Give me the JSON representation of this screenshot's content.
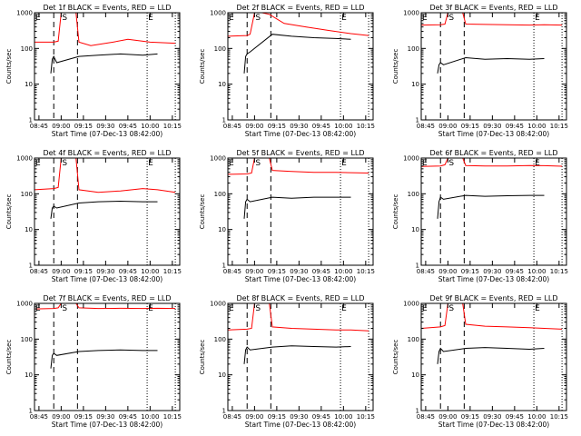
{
  "chart_data": [
    {
      "type": "line",
      "title": "Det 1f BLACK = Events, RED = LLD",
      "xlabel": "Start Time (07-Dec-13 08:42:00)",
      "ylabel": "Counts/sec",
      "y_scale": "log",
      "ylim": [
        1,
        1000
      ],
      "yticks": [
        "1",
        "10",
        "100",
        "1000"
      ],
      "xticks": [
        "08:45",
        "09:00",
        "09:15",
        "09:30",
        "09:45",
        "10:00",
        "10:15"
      ],
      "xlim": [
        "08:42",
        "10:20"
      ],
      "markers": [
        {
          "label": "E",
          "time": "08:42"
        },
        {
          "label": "S",
          "time": "09:00"
        },
        {
          "label": "E",
          "time": "09:58"
        }
      ],
      "dashed_lines": [
        "08:55",
        "09:11"
      ],
      "dotted_lines": [
        "09:58",
        "10:17"
      ],
      "series": [
        {
          "color": "#ff0000",
          "x": [
            "08:42",
            "08:55",
            "08:58",
            "09:00",
            "09:10",
            "09:12",
            "09:20",
            "09:35",
            "09:45",
            "10:00",
            "10:17"
          ],
          "y": [
            150,
            150,
            160,
            1000,
            1000,
            150,
            120,
            150,
            180,
            150,
            140
          ]
        },
        {
          "color": "#000000",
          "x": [
            "08:53",
            "08:54",
            "08:55",
            "08:57",
            "09:12",
            "09:25",
            "09:40",
            "09:55",
            "10:05"
          ],
          "y": [
            20,
            50,
            60,
            40,
            60,
            65,
            70,
            65,
            70
          ]
        }
      ]
    },
    {
      "type": "line",
      "title": "Det 2f BLACK = Events, RED = LLD",
      "xlabel": "Start Time (07-Dec-13 08:42:00)",
      "ylabel": "Counts/sec",
      "y_scale": "log",
      "ylim": [
        1,
        1000
      ],
      "yticks": [
        "1",
        "10",
        "100",
        "1000"
      ],
      "xticks": [
        "08:45",
        "09:00",
        "09:15",
        "09:30",
        "09:45",
        "10:00",
        "10:15"
      ],
      "xlim": [
        "08:42",
        "10:20"
      ],
      "markers": [
        {
          "label": "E",
          "time": "08:42"
        },
        {
          "label": "S",
          "time": "09:00"
        },
        {
          "label": "E",
          "time": "09:58"
        }
      ],
      "dashed_lines": [
        "08:55",
        "09:11"
      ],
      "dotted_lines": [
        "09:58",
        "10:17"
      ],
      "series": [
        {
          "color": "#ff0000",
          "x": [
            "08:42",
            "08:55",
            "08:57",
            "09:00",
            "09:05",
            "09:10",
            "09:20",
            "09:35",
            "09:50",
            "10:05",
            "10:17"
          ],
          "y": [
            220,
            230,
            250,
            1000,
            1000,
            900,
            500,
            400,
            320,
            260,
            230
          ]
        },
        {
          "color": "#000000",
          "x": [
            "08:53",
            "08:54",
            "08:55",
            "08:57",
            "09:12",
            "09:25",
            "09:40",
            "09:55",
            "10:05"
          ],
          "y": [
            20,
            60,
            70,
            80,
            250,
            220,
            200,
            190,
            180
          ]
        }
      ]
    },
    {
      "type": "line",
      "title": "Det 3f BLACK = Events, RED = LLD",
      "xlabel": "Start Time (07-Dec-13 08:42:00)",
      "ylabel": "Counts/sec",
      "y_scale": "log",
      "ylim": [
        1,
        1000
      ],
      "yticks": [
        "1",
        "10",
        "100",
        "1000"
      ],
      "xticks": [
        "08:45",
        "09:00",
        "09:15",
        "09:30",
        "09:45",
        "10:00",
        "10:15"
      ],
      "xlim": [
        "08:42",
        "10:20"
      ],
      "markers": [
        {
          "label": "E",
          "time": "08:42"
        },
        {
          "label": "S",
          "time": "09:00"
        },
        {
          "label": "E",
          "time": "09:58"
        }
      ],
      "dashed_lines": [
        "08:55",
        "09:11"
      ],
      "dotted_lines": [
        "09:58",
        "10:17"
      ],
      "series": [
        {
          "color": "#ff0000",
          "x": [
            "08:42",
            "08:55",
            "08:58",
            "09:00",
            "09:10",
            "09:12",
            "09:25",
            "09:40",
            "09:55",
            "10:05",
            "10:17"
          ],
          "y": [
            450,
            460,
            480,
            1000,
            1000,
            480,
            470,
            460,
            450,
            460,
            450
          ]
        },
        {
          "color": "#000000",
          "x": [
            "08:53",
            "08:54",
            "08:55",
            "08:57",
            "09:12",
            "09:25",
            "09:40",
            "09:55",
            "10:05"
          ],
          "y": [
            20,
            35,
            40,
            35,
            55,
            50,
            52,
            50,
            52
          ]
        }
      ]
    },
    {
      "type": "line",
      "title": "Det 4f BLACK = Events, RED = LLD",
      "xlabel": "Start Time (07-Dec-13 08:42:00)",
      "ylabel": "Counts/sec",
      "y_scale": "log",
      "ylim": [
        1,
        1000
      ],
      "yticks": [
        "1",
        "10",
        "100",
        "1000"
      ],
      "xticks": [
        "08:45",
        "09:00",
        "09:15",
        "09:30",
        "09:45",
        "10:00",
        "10:15"
      ],
      "xlim": [
        "08:42",
        "10:20"
      ],
      "markers": [
        {
          "label": "E",
          "time": "08:42"
        },
        {
          "label": "S",
          "time": "09:00"
        },
        {
          "label": "E",
          "time": "09:58"
        }
      ],
      "dashed_lines": [
        "08:55",
        "09:11"
      ],
      "dotted_lines": [
        "09:58",
        "10:17"
      ],
      "series": [
        {
          "color": "#ff0000",
          "x": [
            "08:42",
            "08:55",
            "08:58",
            "09:00",
            "09:10",
            "09:12",
            "09:25",
            "09:40",
            "09:55",
            "10:05",
            "10:17"
          ],
          "y": [
            130,
            140,
            150,
            1000,
            1000,
            130,
            110,
            120,
            140,
            130,
            110
          ]
        },
        {
          "color": "#000000",
          "x": [
            "08:53",
            "08:54",
            "08:55",
            "08:57",
            "09:12",
            "09:25",
            "09:40",
            "09:55",
            "10:05"
          ],
          "y": [
            20,
            40,
            45,
            40,
            55,
            60,
            62,
            60,
            60
          ]
        }
      ]
    },
    {
      "type": "line",
      "title": "Det 5f BLACK = Events, RED = LLD",
      "xlabel": "Start Time (07-Dec-13 08:42:00)",
      "ylabel": "Counts/sec",
      "y_scale": "log",
      "ylim": [
        1,
        1000
      ],
      "yticks": [
        "1",
        "10",
        "100",
        "1000"
      ],
      "xticks": [
        "08:45",
        "09:00",
        "09:15",
        "09:30",
        "09:45",
        "10:00",
        "10:15"
      ],
      "xlim": [
        "08:42",
        "10:20"
      ],
      "markers": [
        {
          "label": "E",
          "time": "08:42"
        },
        {
          "label": "S",
          "time": "09:00"
        },
        {
          "label": "E",
          "time": "09:58"
        }
      ],
      "dashed_lines": [
        "08:55",
        "09:11"
      ],
      "dotted_lines": [
        "09:58",
        "10:17"
      ],
      "series": [
        {
          "color": "#ff0000",
          "x": [
            "08:42",
            "08:55",
            "08:58",
            "09:00",
            "09:10",
            "09:12",
            "09:25",
            "09:40",
            "09:55",
            "10:05",
            "10:17"
          ],
          "y": [
            350,
            360,
            380,
            1000,
            1000,
            450,
            420,
            400,
            400,
            390,
            380
          ]
        },
        {
          "color": "#000000",
          "x": [
            "08:53",
            "08:54",
            "08:55",
            "08:57",
            "09:12",
            "09:25",
            "09:40",
            "09:55",
            "10:05"
          ],
          "y": [
            20,
            60,
            70,
            60,
            80,
            75,
            80,
            80,
            80
          ]
        }
      ]
    },
    {
      "type": "line",
      "title": "Det 6f BLACK = Events, RED = LLD",
      "xlabel": "Start Time (07-Dec-13 08:42:00)",
      "ylabel": "Counts/sec",
      "y_scale": "log",
      "ylim": [
        1,
        1000
      ],
      "yticks": [
        "1",
        "10",
        "100",
        "1000"
      ],
      "xticks": [
        "08:45",
        "09:00",
        "09:15",
        "09:30",
        "09:45",
        "10:00",
        "10:15"
      ],
      "xlim": [
        "08:42",
        "10:20"
      ],
      "markers": [
        {
          "label": "E",
          "time": "08:42"
        },
        {
          "label": "S",
          "time": "09:00"
        },
        {
          "label": "E",
          "time": "09:58"
        }
      ],
      "dashed_lines": [
        "08:55",
        "09:11"
      ],
      "dotted_lines": [
        "09:58",
        "10:17"
      ],
      "series": [
        {
          "color": "#ff0000",
          "x": [
            "08:42",
            "08:55",
            "08:58",
            "09:00",
            "09:10",
            "09:12",
            "09:25",
            "09:40",
            "09:55",
            "10:05",
            "10:17"
          ],
          "y": [
            580,
            600,
            650,
            1000,
            1000,
            620,
            600,
            600,
            620,
            610,
            590
          ]
        },
        {
          "color": "#000000",
          "x": [
            "08:53",
            "08:54",
            "08:55",
            "08:57",
            "09:12",
            "09:25",
            "09:40",
            "09:55",
            "10:05"
          ],
          "y": [
            20,
            60,
            80,
            70,
            90,
            85,
            88,
            90,
            90
          ]
        }
      ]
    },
    {
      "type": "line",
      "title": "Det 7f BLACK = Events, RED = LLD",
      "xlabel": "Start Time (07-Dec-13 08:42:00)",
      "ylabel": "Counts/sec",
      "y_scale": "log",
      "ylim": [
        1,
        1000
      ],
      "yticks": [
        "1",
        "10",
        "100",
        "1000"
      ],
      "xticks": [
        "08:45",
        "09:00",
        "09:15",
        "09:30",
        "09:45",
        "10:00",
        "10:15"
      ],
      "xlim": [
        "08:42",
        "10:20"
      ],
      "markers": [
        {
          "label": "E",
          "time": "08:42"
        },
        {
          "label": "S",
          "time": "09:00"
        },
        {
          "label": "E",
          "time": "09:58"
        }
      ],
      "dashed_lines": [
        "08:55",
        "09:11"
      ],
      "dotted_lines": [
        "09:58",
        "10:17"
      ],
      "series": [
        {
          "color": "#ff0000",
          "x": [
            "08:42",
            "08:55",
            "08:58",
            "09:00",
            "09:10",
            "09:12",
            "09:25",
            "09:40",
            "09:55",
            "10:05",
            "10:17"
          ],
          "y": [
            700,
            720,
            750,
            1000,
            1000,
            750,
            720,
            730,
            720,
            730,
            720
          ]
        },
        {
          "color": "#000000",
          "x": [
            "08:53",
            "08:54",
            "08:55",
            "08:57",
            "09:12",
            "09:25",
            "09:40",
            "09:55",
            "10:05"
          ],
          "y": [
            15,
            35,
            40,
            35,
            45,
            48,
            50,
            48,
            48
          ]
        }
      ]
    },
    {
      "type": "line",
      "title": "Det 8f BLACK = Events, RED = LLD",
      "xlabel": "Start Time (07-Dec-13 08:42:00)",
      "ylabel": "Counts/sec",
      "y_scale": "log",
      "ylim": [
        1,
        1000
      ],
      "yticks": [
        "1",
        "10",
        "100",
        "1000"
      ],
      "xticks": [
        "08:45",
        "09:00",
        "09:15",
        "09:30",
        "09:45",
        "10:00",
        "10:15"
      ],
      "xlim": [
        "08:42",
        "10:20"
      ],
      "markers": [
        {
          "label": "E",
          "time": "08:42"
        },
        {
          "label": "S",
          "time": "09:00"
        },
        {
          "label": "E",
          "time": "09:58"
        }
      ],
      "dashed_lines": [
        "08:55",
        "09:11"
      ],
      "dotted_lines": [
        "09:58",
        "10:17"
      ],
      "series": [
        {
          "color": "#ff0000",
          "x": [
            "08:42",
            "08:55",
            "08:58",
            "09:00",
            "09:10",
            "09:12",
            "09:25",
            "09:40",
            "09:55",
            "10:05",
            "10:17"
          ],
          "y": [
            180,
            190,
            200,
            1000,
            1000,
            220,
            200,
            190,
            180,
            180,
            170
          ]
        },
        {
          "color": "#000000",
          "x": [
            "08:53",
            "08:54",
            "08:55",
            "08:57",
            "09:12",
            "09:25",
            "09:40",
            "09:55",
            "10:05"
          ],
          "y": [
            20,
            50,
            60,
            50,
            60,
            65,
            62,
            60,
            62
          ]
        }
      ]
    },
    {
      "type": "line",
      "title": "Det 9f BLACK = Events, RED = LLD",
      "xlabel": "Start Time (07-Dec-13 08:42:00)",
      "ylabel": "Counts/sec",
      "y_scale": "log",
      "ylim": [
        1,
        1000
      ],
      "yticks": [
        "1",
        "10",
        "100",
        "1000"
      ],
      "xticks": [
        "08:45",
        "09:00",
        "09:15",
        "09:30",
        "09:45",
        "10:00",
        "10:15"
      ],
      "xlim": [
        "08:42",
        "10:20"
      ],
      "markers": [
        {
          "label": "E",
          "time": "08:42"
        },
        {
          "label": "S",
          "time": "09:00"
        },
        {
          "label": "E",
          "time": "09:58"
        }
      ],
      "dashed_lines": [
        "08:55",
        "09:11"
      ],
      "dotted_lines": [
        "09:58",
        "10:17"
      ],
      "series": [
        {
          "color": "#ff0000",
          "x": [
            "08:42",
            "08:55",
            "08:58",
            "09:00",
            "09:10",
            "09:12",
            "09:25",
            "09:40",
            "09:55",
            "10:05",
            "10:17"
          ],
          "y": [
            200,
            220,
            240,
            1000,
            1000,
            260,
            230,
            220,
            210,
            200,
            190
          ]
        },
        {
          "color": "#000000",
          "x": [
            "08:53",
            "08:54",
            "08:55",
            "08:57",
            "09:12",
            "09:25",
            "09:40",
            "09:55",
            "10:05"
          ],
          "y": [
            20,
            45,
            55,
            45,
            55,
            58,
            55,
            52,
            55
          ]
        }
      ]
    }
  ]
}
